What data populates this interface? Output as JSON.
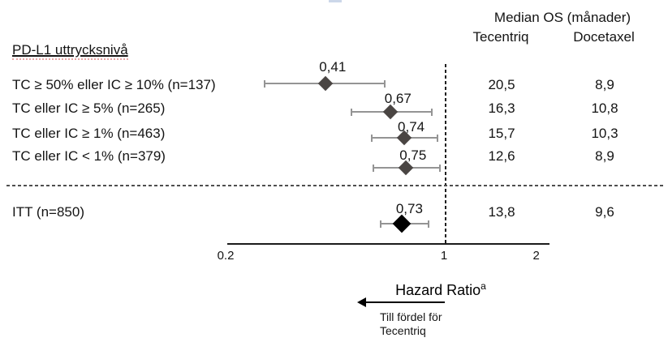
{
  "header": {
    "median_os_title": "Median OS (månader)",
    "col_tecentriq": "Tecentriq",
    "col_docetaxel": "Docetaxel"
  },
  "pdl1_heading": "PD-L1 uttrycksnivå",
  "chart_data": {
    "type": "forest",
    "x_axis": {
      "scale": "log",
      "tick_labels": [
        "0.2",
        "1",
        "2"
      ],
      "tick_values": [
        0.2,
        1,
        2
      ],
      "range": [
        0.2,
        2.2
      ],
      "reference_line": 1
    },
    "xlabel": "Hazard Ratio",
    "xlabel_superscript": "a",
    "rows": [
      {
        "label": "TC ≥ 50% eller IC ≥ 10% (n=137)",
        "hr": 0.41,
        "hr_label": "0,41",
        "ci_low": 0.26,
        "ci_high": 0.64,
        "os_tecentriq": "20,5",
        "os_docetaxel": "8,9",
        "group": "subgroup"
      },
      {
        "label": "TC eller IC ≥ 5% (n=265)",
        "hr": 0.67,
        "hr_label": "0,67",
        "ci_low": 0.5,
        "ci_high": 0.91,
        "os_tecentriq": "16,3",
        "os_docetaxel": "10,8",
        "group": "subgroup"
      },
      {
        "label": "TC eller IC ≥ 1% (n=463)",
        "hr": 0.74,
        "hr_label": "0,74",
        "ci_low": 0.58,
        "ci_high": 0.95,
        "os_tecentriq": "15,7",
        "os_docetaxel": "10,3",
        "group": "subgroup"
      },
      {
        "label": "TC eller IC < 1% (n=379)",
        "hr": 0.75,
        "hr_label": "0,75",
        "ci_low": 0.59,
        "ci_high": 0.97,
        "os_tecentriq": "12,6",
        "os_docetaxel": "8,9",
        "group": "subgroup"
      },
      {
        "label": "ITT (n=850)",
        "hr": 0.73,
        "hr_label": "0,73",
        "ci_low": 0.62,
        "ci_high": 0.89,
        "os_tecentriq": "13,8",
        "os_docetaxel": "9,6",
        "group": "itt"
      }
    ],
    "favors_note": [
      "Till fördel för",
      "Tecentriq"
    ]
  },
  "colors": {
    "subgroup_diamond": "#4a4543",
    "itt_diamond": "#000000",
    "ci_line": "#949494",
    "text": "#141414",
    "selection_artifact": "#ccd7e9"
  }
}
